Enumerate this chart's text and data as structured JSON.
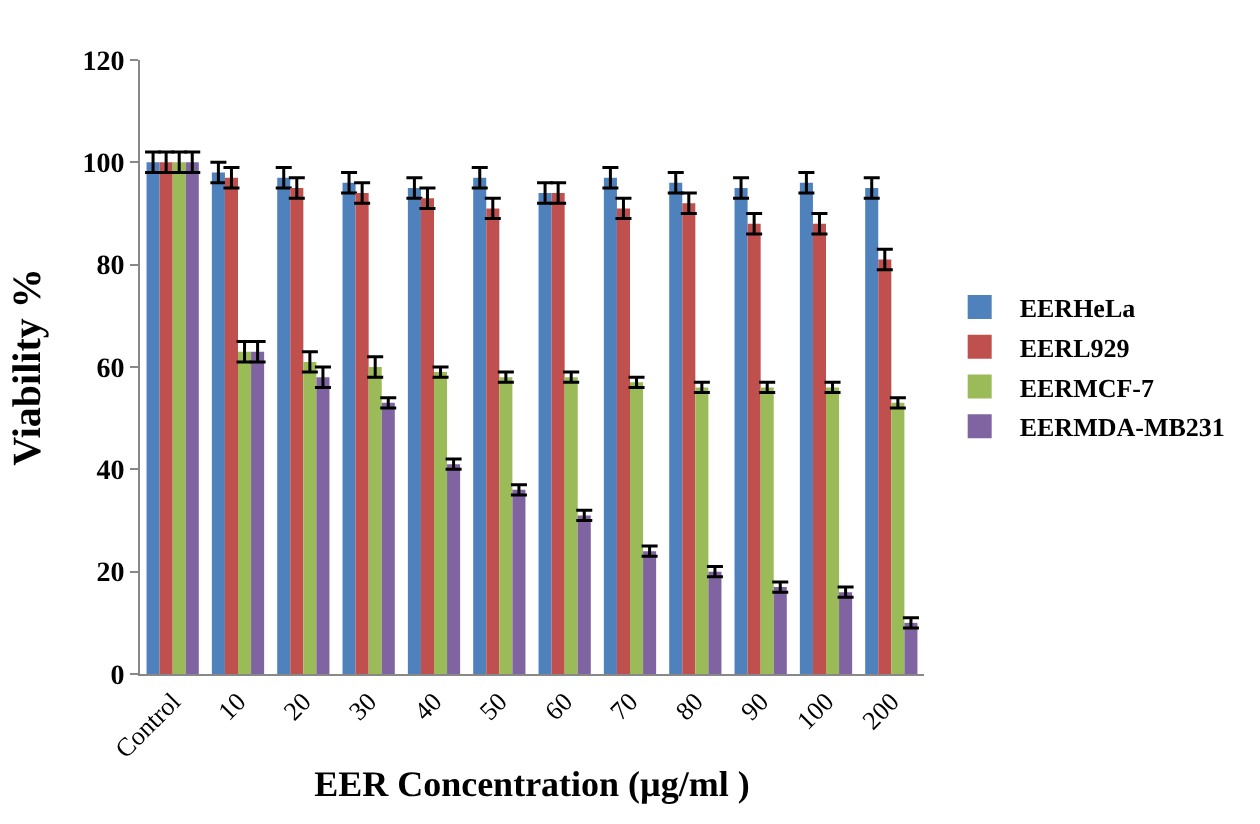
{
  "chart_data": {
    "type": "bar",
    "xlabel": "EER Concentration (µg/ml )",
    "ylabel": "Viability %",
    "categories": [
      "Control",
      "10",
      "20",
      "30",
      "40",
      "50",
      "60",
      "70",
      "80",
      "90",
      "100",
      "200"
    ],
    "series": [
      {
        "name": "EERHeLa",
        "color": "#4f81bd",
        "values": [
          100,
          98,
          97,
          96,
          95,
          97,
          94,
          97,
          96,
          95,
          96,
          95
        ],
        "errors": [
          2,
          2,
          2,
          2,
          2,
          2,
          2,
          2,
          2,
          2,
          2,
          2
        ]
      },
      {
        "name": "EERL929",
        "color": "#c0504d",
        "values": [
          100,
          97,
          95,
          94,
          93,
          91,
          94,
          91,
          92,
          88,
          88,
          81
        ],
        "errors": [
          2,
          2,
          2,
          2,
          2,
          2,
          2,
          2,
          2,
          2,
          2,
          2
        ]
      },
      {
        "name": "EERMCF-7",
        "color": "#9bbb59",
        "values": [
          100,
          63,
          61,
          60,
          59,
          58,
          58,
          57,
          56,
          56,
          56,
          53
        ],
        "errors": [
          2,
          2,
          2,
          2,
          1,
          1,
          1,
          1,
          1,
          1,
          1,
          1
        ]
      },
      {
        "name": "EERMDA-MB231",
        "color": "#8064a2",
        "values": [
          100,
          63,
          58,
          53,
          41,
          36,
          31,
          24,
          20,
          17,
          16,
          10
        ],
        "errors": [
          2,
          2,
          2,
          1,
          1,
          1,
          1,
          1,
          1,
          1,
          1,
          1
        ]
      }
    ],
    "ylim": [
      0,
      120
    ],
    "yticks": [
      0,
      20,
      40,
      60,
      80,
      100,
      120
    ],
    "grid": false,
    "legend": "right"
  }
}
